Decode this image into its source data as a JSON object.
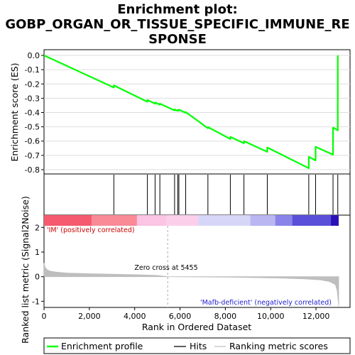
{
  "chart_data": {
    "type": "line",
    "title_lines": [
      "Enrichment plot:",
      "GOBP_ORGAN_OR_TISSUE_SPECIFIC_IMMUNE_RE",
      "SPONSE"
    ],
    "xlabel": "Rank in Ordered Dataset",
    "ylabel_top": "Enrichment score (ES)",
    "ylabel_bottom": "Ranked list metric (Signal2Noise)",
    "xlim": [
      0,
      13500
    ],
    "x_ticks": [
      0,
      2000,
      4000,
      6000,
      8000,
      10000,
      12000
    ],
    "x_tick_labels": [
      "0",
      "2,000",
      "4,000",
      "6,000",
      "8,000",
      "10,000",
      "12,000"
    ],
    "es_ylim": [
      -0.83,
      0.04
    ],
    "es_ticks": [
      0.0,
      -0.1,
      -0.2,
      -0.3,
      -0.4,
      -0.5,
      -0.6,
      -0.7,
      -0.8
    ],
    "es_tick_labels": [
      "0.0",
      "-0.1",
      "-0.2",
      "-0.3",
      "-0.4",
      "-0.5",
      "-0.6",
      "-0.7",
      "-0.8"
    ],
    "metric_ylim": [
      -1.25,
      2.5
    ],
    "metric_ticks": [
      2,
      1,
      0,
      -1
    ],
    "metric_tick_labels": [
      "2",
      "1",
      "0",
      "-1"
    ],
    "n_genes": 13000,
    "hits": [
      3080,
      4560,
      4900,
      5110,
      5760,
      5900,
      5950,
      6250,
      7230,
      8220,
      8820,
      9850,
      11680,
      11980,
      12750,
      12960
    ],
    "es_points": [
      [
        0,
        0.0
      ],
      [
        3080,
        -0.225
      ],
      [
        3081,
        -0.21
      ],
      [
        4560,
        -0.325
      ],
      [
        4561,
        -0.312
      ],
      [
        4900,
        -0.338
      ],
      [
        4901,
        -0.33
      ],
      [
        5110,
        -0.345
      ],
      [
        5111,
        -0.338
      ],
      [
        5760,
        -0.385
      ],
      [
        5761,
        -0.378
      ],
      [
        5900,
        -0.388
      ],
      [
        5901,
        -0.382
      ],
      [
        5950,
        -0.386
      ],
      [
        5951,
        -0.38
      ],
      [
        6250,
        -0.402
      ],
      [
        6251,
        -0.396
      ],
      [
        7230,
        -0.51
      ],
      [
        7231,
        -0.502
      ],
      [
        8220,
        -0.585
      ],
      [
        8221,
        -0.57
      ],
      [
        8820,
        -0.615
      ],
      [
        8821,
        -0.6
      ],
      [
        9850,
        -0.675
      ],
      [
        9851,
        -0.645
      ],
      [
        11680,
        -0.79
      ],
      [
        11681,
        -0.71
      ],
      [
        11980,
        -0.735
      ],
      [
        11981,
        -0.64
      ],
      [
        12750,
        -0.695
      ],
      [
        12751,
        -0.505
      ],
      [
        12960,
        -0.525
      ],
      [
        12961,
        0.0
      ]
    ],
    "metric_points": [
      [
        0,
        0.55
      ],
      [
        50,
        0.38
      ],
      [
        150,
        0.27
      ],
      [
        300,
        0.22
      ],
      [
        600,
        0.18
      ],
      [
        1000,
        0.15
      ],
      [
        2000,
        0.12
      ],
      [
        3000,
        0.1
      ],
      [
        4000,
        0.08
      ],
      [
        5000,
        0.05
      ],
      [
        5455,
        0.0
      ],
      [
        6500,
        -0.01
      ],
      [
        8000,
        -0.02
      ],
      [
        9500,
        -0.04
      ],
      [
        10500,
        -0.06
      ],
      [
        11500,
        -0.09
      ],
      [
        12200,
        -0.13
      ],
      [
        12600,
        -0.2
      ],
      [
        12850,
        -0.32
      ],
      [
        12930,
        -0.55
      ],
      [
        12970,
        -0.9
      ],
      [
        13000,
        -1.2
      ]
    ],
    "zero_cross_label": "Zero cross at 5455",
    "zero_cross_rank": 5455,
    "pos_label": "'IM' (positively correlated)",
    "neg_label": "'Mafb-deficient' (negatively correlated)",
    "bar_segments": [
      {
        "from": 0,
        "to": 2100,
        "color": "#f55a6e"
      },
      {
        "from": 2100,
        "to": 4100,
        "color": "#fa8a96"
      },
      {
        "from": 4100,
        "to": 5400,
        "color": "#fbc3e4"
      },
      {
        "from": 5400,
        "to": 6800,
        "color": "#fbcfea"
      },
      {
        "from": 6800,
        "to": 9100,
        "color": "#d8d6f8"
      },
      {
        "from": 9100,
        "to": 10200,
        "color": "#b9b6f2"
      },
      {
        "from": 10200,
        "to": 10950,
        "color": "#8a84ea"
      },
      {
        "from": 10950,
        "to": 12650,
        "color": "#5a4fd8"
      },
      {
        "from": 12650,
        "to": 13000,
        "color": "#2b12b8"
      }
    ],
    "colors": {
      "es_line": "#00ff00",
      "hits": "#000000",
      "metric_fill": "#bebebe",
      "pos_text": "#cc0000",
      "neg_text": "#2222cc"
    },
    "legend": [
      {
        "label": "Enrichment profile",
        "kind": "es"
      },
      {
        "label": "Hits",
        "kind": "hits"
      },
      {
        "label": "Ranking metric scores",
        "kind": "metric"
      }
    ]
  }
}
